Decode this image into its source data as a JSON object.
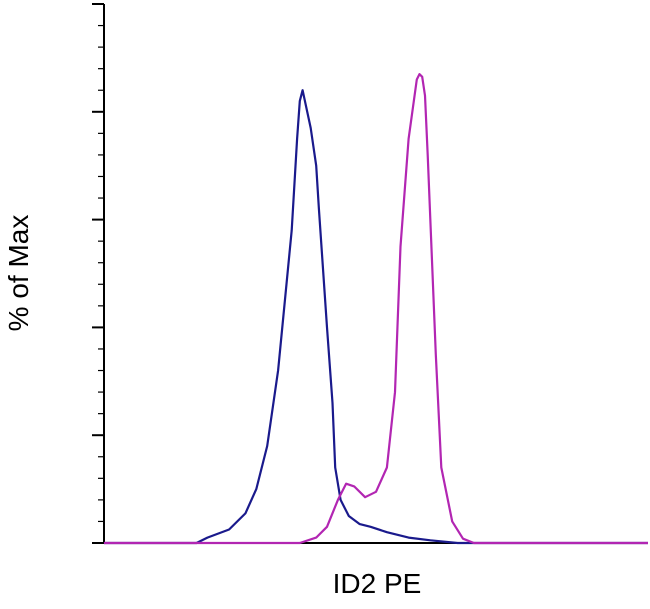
{
  "chart_data": {
    "type": "line",
    "title": "",
    "xlabel": "ID2 PE",
    "ylabel": "% of Max",
    "xlim": [
      0,
      1
    ],
    "ylim": [
      0,
      100
    ],
    "grid": false,
    "legend": "none",
    "series": [
      {
        "color": "#1a1a8c",
        "x": [
          0.0,
          0.17,
          0.19,
          0.23,
          0.26,
          0.28,
          0.3,
          0.32,
          0.345,
          0.355,
          0.36,
          0.365,
          0.38,
          0.39,
          0.395,
          0.41,
          0.42,
          0.425,
          0.435,
          0.45,
          0.47,
          0.49,
          0.52,
          0.56,
          0.6,
          0.65,
          1.0
        ],
        "y": [
          0,
          0,
          1.0,
          2.5,
          5.5,
          10.0,
          18.0,
          32.0,
          58.0,
          75.0,
          82.0,
          84.0,
          77.0,
          70.0,
          62.0,
          40.0,
          26.0,
          14.0,
          8.0,
          5.0,
          3.5,
          3.0,
          2.0,
          1.0,
          0.5,
          0,
          0
        ]
      },
      {
        "color": "#b226b2",
        "x": [
          0.0,
          0.36,
          0.39,
          0.41,
          0.43,
          0.445,
          0.46,
          0.48,
          0.5,
          0.52,
          0.535,
          0.545,
          0.56,
          0.575,
          0.58,
          0.585,
          0.59,
          0.595,
          0.61,
          0.62,
          0.64,
          0.66,
          0.68,
          1.0
        ],
        "y": [
          0,
          0,
          1.0,
          3.0,
          8.0,
          11.0,
          10.5,
          8.5,
          9.5,
          14.0,
          28.0,
          55.0,
          75.0,
          86.0,
          87.0,
          86.5,
          83.0,
          72.0,
          35.0,
          14.0,
          4.0,
          0.8,
          0,
          0
        ]
      }
    ]
  }
}
